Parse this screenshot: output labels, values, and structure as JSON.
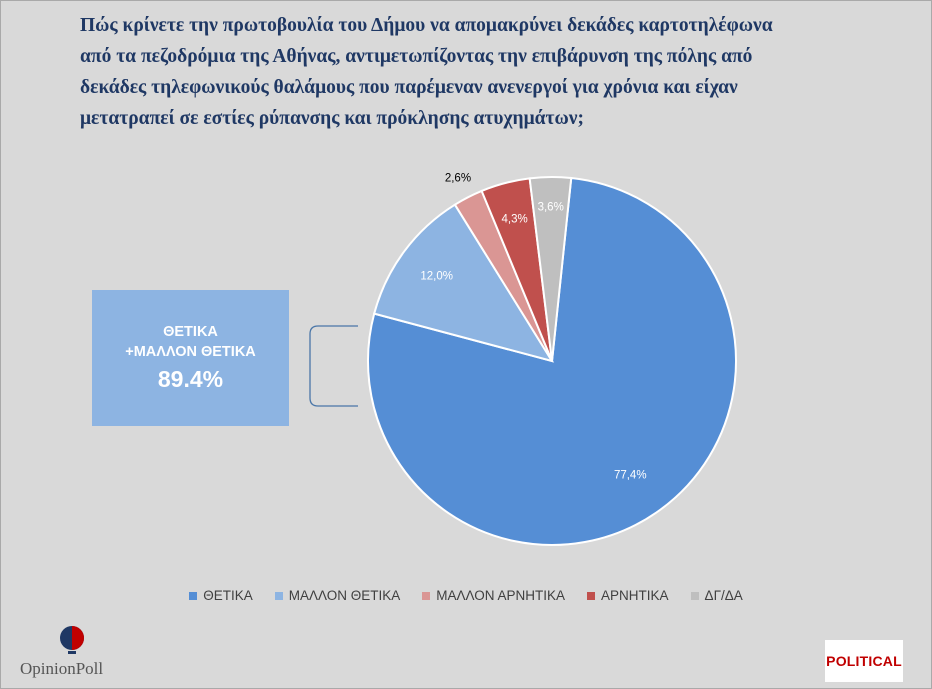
{
  "title_lines": [
    "Πώς κρίνετε την πρωτοβουλία του Δήμου να απομακρύνει δεκάδες καρτοτηλέφωνα",
    "από τα πεζοδρόμια της Αθήνας, αντιμετωπίζοντας την επιβάρυνση της πόλης από",
    "δεκάδες τηλεφωνικούς θαλάμους που παρέμεναν ανενεργοί για χρόνια και είχαν",
    "μετατραπεί σε εστίες ρύπανσης και πρόκλησης ατυχημάτων;"
  ],
  "callout": {
    "line1": "ΘΕΤΙΚΑ",
    "line2": "+ΜΑΛΛΟΝ ΘΕΤΙΚΑ",
    "value": "89.4%"
  },
  "logos": {
    "left": "OpinionPoll",
    "right": "POLITICAL"
  },
  "chart_data": {
    "type": "pie",
    "categories": [
      "ΘΕΤΙΚΑ",
      "ΜΑΛΛΟΝ ΘΕΤΙΚΑ",
      "ΜΑΛΛΟΝ ΑΡΝΗΤΙΚΑ",
      "ΑΡΝΗΤΙΚΑ",
      "ΔΓ/ΔΑ"
    ],
    "values": [
      77.4,
      12.0,
      2.6,
      4.3,
      3.6
    ],
    "labels": [
      "77,4%",
      "12,0%",
      "2,6%",
      "4,3%",
      "3,6%"
    ],
    "colors": [
      "#558ed5",
      "#8db4e2",
      "#da9694",
      "#c0504d",
      "#bfbfbf"
    ],
    "legend_position": "bottom"
  }
}
